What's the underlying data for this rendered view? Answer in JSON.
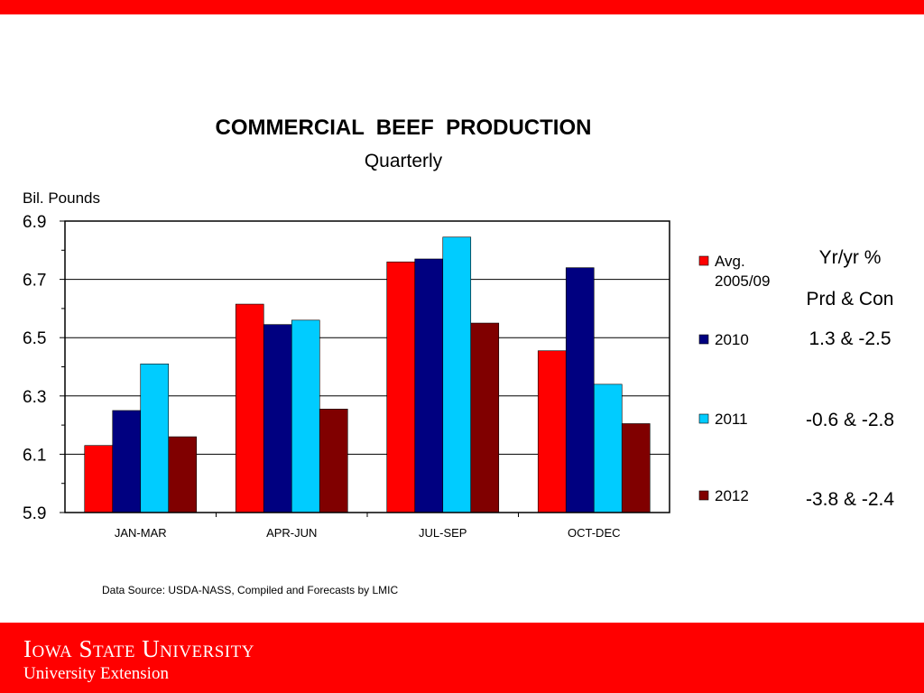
{
  "header_bar_color": "#ff0000",
  "footer": {
    "bar_color": "#ff0000",
    "logo_line1": "Iowa State University",
    "logo_line2": "University Extension"
  },
  "chart_data": {
    "type": "bar",
    "title": "COMMERCIAL  BEEF  PRODUCTION",
    "subtitle": "Quarterly",
    "ylabel": "Bil. Pounds",
    "xlabel": "",
    "ylim": [
      5.9,
      6.9
    ],
    "yticks": [
      "6.9",
      "6.7",
      "6.5",
      "6.3",
      "6.1",
      "5.9"
    ],
    "ytick_values": [
      6.9,
      6.7,
      6.5,
      6.3,
      6.1,
      5.9
    ],
    "grid": true,
    "legend_position": "right",
    "categories": [
      "JAN-MAR",
      "APR-JUN",
      "JUL-SEP",
      "OCT-DEC"
    ],
    "series": [
      {
        "name": "Avg. 2005/09",
        "legend_lines": [
          "Avg.",
          "2005/09"
        ],
        "color": "#ff0000",
        "values": [
          6.13,
          6.615,
          6.76,
          6.455
        ]
      },
      {
        "name": "2010",
        "legend_lines": [
          "2010"
        ],
        "color": "#000080",
        "values": [
          6.25,
          6.545,
          6.77,
          6.74
        ]
      },
      {
        "name": "2011",
        "legend_lines": [
          "2011"
        ],
        "color": "#00ccff",
        "values": [
          6.41,
          6.56,
          6.845,
          6.34
        ]
      },
      {
        "name": "2012",
        "legend_lines": [
          "2012"
        ],
        "color": "#800000",
        "values": [
          6.16,
          6.255,
          6.55,
          6.205
        ]
      }
    ]
  },
  "side_notes": {
    "heading1": "Yr/yr %",
    "heading2": "Prd & Con",
    "row_2010": "1.3  &  -2.5",
    "row_2011": "-0.6  &  -2.8",
    "row_2012": "-3.8  &  -2.4"
  },
  "source_text": "Data Source:  USDA-NASS, Compiled and Forecasts by LMIC"
}
